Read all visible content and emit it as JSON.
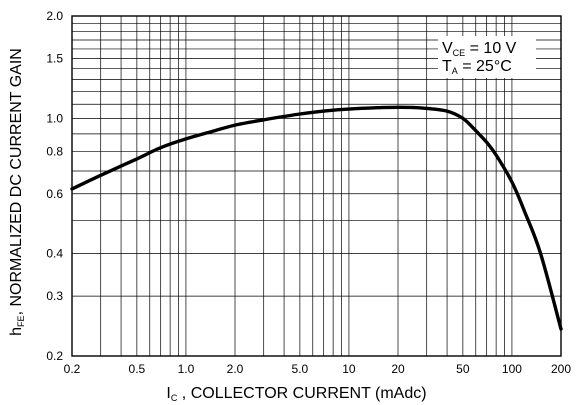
{
  "chart_data": {
    "type": "line",
    "title": "",
    "xlabel": {
      "prefix": "I",
      "sub": "C",
      "rest": " , COLLECTOR CURRENT (mAdc)"
    },
    "ylabel": {
      "prefix": "h",
      "sub": "FE",
      "rest": ", NORMALIZED DC CURRENT GAIN"
    },
    "xscale": "log",
    "yscale": "log",
    "xlim": [
      0.2,
      200
    ],
    "ylim": [
      0.2,
      2.0
    ],
    "xticks": [
      {
        "value": 0.2,
        "label": "0.2"
      },
      {
        "value": 0.5,
        "label": "0.5"
      },
      {
        "value": 1,
        "label": "1.0"
      },
      {
        "value": 2,
        "label": "2.0"
      },
      {
        "value": 5,
        "label": "5.0"
      },
      {
        "value": 10,
        "label": "10"
      },
      {
        "value": 20,
        "label": "20"
      },
      {
        "value": 50,
        "label": "50"
      },
      {
        "value": 100,
        "label": "100"
      },
      {
        "value": 200,
        "label": "200"
      }
    ],
    "yticks": [
      {
        "value": 0.2,
        "label": "0.2"
      },
      {
        "value": 0.3,
        "label": "0.3"
      },
      {
        "value": 0.4,
        "label": "0.4"
      },
      {
        "value": 0.6,
        "label": "0.6"
      },
      {
        "value": 0.8,
        "label": "0.8"
      },
      {
        "value": 1.0,
        "label": "1.0"
      },
      {
        "value": 1.5,
        "label": "1.5"
      },
      {
        "value": 2.0,
        "label": "2.0"
      }
    ],
    "grid": true,
    "series": [
      {
        "color": "#000000",
        "x": [
          0.2,
          0.3,
          0.5,
          0.7,
          1.0,
          1.5,
          2.0,
          3.0,
          5.0,
          7.0,
          10,
          15,
          20,
          25,
          30,
          40,
          50,
          60,
          70,
          80,
          100,
          120,
          150,
          200
        ],
        "y": [
          0.62,
          0.68,
          0.76,
          0.82,
          0.87,
          0.92,
          0.955,
          0.99,
          1.03,
          1.05,
          1.065,
          1.075,
          1.078,
          1.076,
          1.07,
          1.05,
          1.0,
          0.92,
          0.85,
          0.78,
          0.65,
          0.53,
          0.4,
          0.24
        ]
      }
    ],
    "annotations": [
      {
        "prefix": "V",
        "sub": "CE",
        "rest": " = 10 V"
      },
      {
        "prefix": "T",
        "sub": "A",
        "rest": " = 25°C"
      }
    ]
  }
}
